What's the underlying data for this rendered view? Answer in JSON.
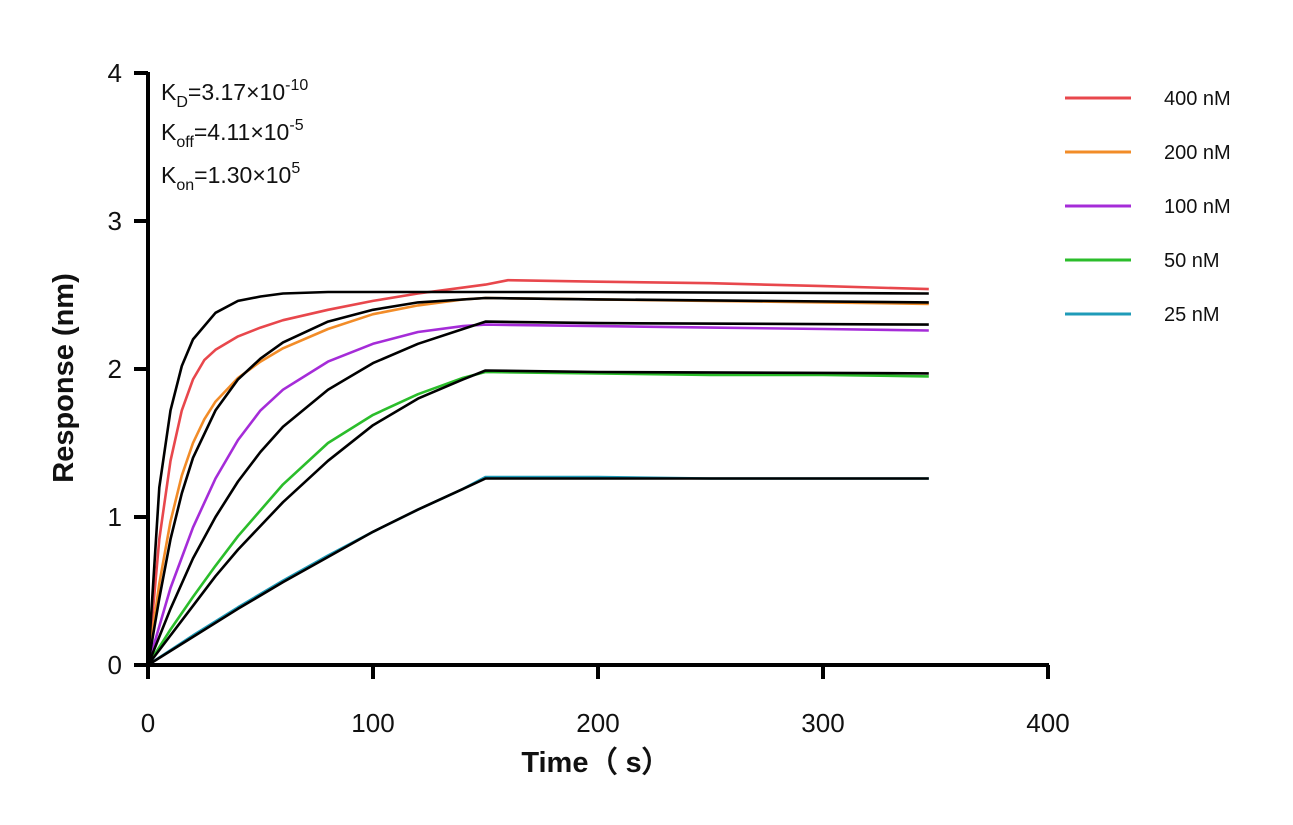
{
  "chart_data": {
    "type": "line",
    "xlabel": "Time（ s）",
    "ylabel": "Response (nm)",
    "xlim": [
      0,
      400
    ],
    "ylim": [
      0,
      4
    ],
    "x_ticks": [
      "0",
      "100",
      "200",
      "300",
      "400"
    ],
    "y_ticks": [
      "0",
      "1",
      "2",
      "3",
      "4"
    ],
    "grid": false,
    "legend_position": "top-right, outside plot",
    "annotations": {
      "kd": {
        "main": "K",
        "sub": "D",
        "eq": "=3.17×10",
        "exp": "-10"
      },
      "koff": {
        "main": "K",
        "sub": "off",
        "eq": "=4.11×10",
        "exp": "-5"
      },
      "kon": {
        "main": "K",
        "sub": "on",
        "eq": "=1.30×10",
        "exp": "5"
      }
    },
    "association_end_time": 150,
    "end_time": 347,
    "series": [
      {
        "name": "400 nM",
        "color": "#e8474c",
        "measured": [
          [
            0,
            0
          ],
          [
            5,
            0.85
          ],
          [
            10,
            1.38
          ],
          [
            15,
            1.72
          ],
          [
            20,
            1.93
          ],
          [
            25,
            2.06
          ],
          [
            30,
            2.13
          ],
          [
            40,
            2.22
          ],
          [
            50,
            2.28
          ],
          [
            60,
            2.33
          ],
          [
            80,
            2.4
          ],
          [
            100,
            2.46
          ],
          [
            120,
            2.51
          ],
          [
            140,
            2.55
          ],
          [
            150,
            2.57
          ],
          [
            160,
            2.6
          ],
          [
            200,
            2.59
          ],
          [
            250,
            2.58
          ],
          [
            300,
            2.56
          ],
          [
            347,
            2.54
          ]
        ],
        "fit": [
          [
            0,
            0
          ],
          [
            5,
            1.2
          ],
          [
            10,
            1.72
          ],
          [
            15,
            2.02
          ],
          [
            20,
            2.2
          ],
          [
            30,
            2.38
          ],
          [
            40,
            2.46
          ],
          [
            50,
            2.49
          ],
          [
            60,
            2.51
          ],
          [
            80,
            2.52
          ],
          [
            150,
            2.52
          ],
          [
            200,
            2.52
          ],
          [
            347,
            2.51
          ]
        ]
      },
      {
        "name": "200 nM",
        "color": "#f28c28",
        "measured": [
          [
            0,
            0
          ],
          [
            5,
            0.55
          ],
          [
            10,
            0.97
          ],
          [
            15,
            1.28
          ],
          [
            20,
            1.5
          ],
          [
            25,
            1.66
          ],
          [
            30,
            1.78
          ],
          [
            40,
            1.94
          ],
          [
            50,
            2.05
          ],
          [
            60,
            2.14
          ],
          [
            80,
            2.27
          ],
          [
            100,
            2.37
          ],
          [
            120,
            2.43
          ],
          [
            140,
            2.47
          ],
          [
            150,
            2.48
          ],
          [
            200,
            2.47
          ],
          [
            250,
            2.46
          ],
          [
            300,
            2.45
          ],
          [
            347,
            2.44
          ]
        ],
        "fit": [
          [
            0,
            0
          ],
          [
            5,
            0.45
          ],
          [
            10,
            0.85
          ],
          [
            15,
            1.16
          ],
          [
            20,
            1.4
          ],
          [
            30,
            1.72
          ],
          [
            40,
            1.93
          ],
          [
            50,
            2.07
          ],
          [
            60,
            2.18
          ],
          [
            80,
            2.32
          ],
          [
            100,
            2.4
          ],
          [
            120,
            2.45
          ],
          [
            150,
            2.48
          ],
          [
            200,
            2.47
          ],
          [
            347,
            2.45
          ]
        ]
      },
      {
        "name": "100 nM",
        "color": "#a52cd8",
        "measured": [
          [
            0,
            0
          ],
          [
            10,
            0.52
          ],
          [
            20,
            0.93
          ],
          [
            30,
            1.26
          ],
          [
            40,
            1.52
          ],
          [
            50,
            1.72
          ],
          [
            60,
            1.86
          ],
          [
            80,
            2.05
          ],
          [
            100,
            2.17
          ],
          [
            120,
            2.25
          ],
          [
            140,
            2.29
          ],
          [
            150,
            2.3
          ],
          [
            200,
            2.29
          ],
          [
            250,
            2.28
          ],
          [
            300,
            2.27
          ],
          [
            347,
            2.26
          ]
        ],
        "fit": [
          [
            0,
            0
          ],
          [
            10,
            0.38
          ],
          [
            20,
            0.72
          ],
          [
            30,
            1.0
          ],
          [
            40,
            1.24
          ],
          [
            50,
            1.44
          ],
          [
            60,
            1.61
          ],
          [
            80,
            1.86
          ],
          [
            100,
            2.04
          ],
          [
            120,
            2.17
          ],
          [
            140,
            2.27
          ],
          [
            150,
            2.32
          ],
          [
            200,
            2.31
          ],
          [
            347,
            2.3
          ]
        ]
      },
      {
        "name": "50 nM",
        "color": "#2bbd2b",
        "measured": [
          [
            0,
            0
          ],
          [
            10,
            0.24
          ],
          [
            20,
            0.46
          ],
          [
            30,
            0.67
          ],
          [
            40,
            0.87
          ],
          [
            60,
            1.22
          ],
          [
            80,
            1.5
          ],
          [
            100,
            1.69
          ],
          [
            120,
            1.83
          ],
          [
            140,
            1.94
          ],
          [
            150,
            1.98
          ],
          [
            200,
            1.97
          ],
          [
            250,
            1.96
          ],
          [
            300,
            1.96
          ],
          [
            347,
            1.95
          ]
        ],
        "fit": [
          [
            0,
            0
          ],
          [
            10,
            0.2
          ],
          [
            20,
            0.4
          ],
          [
            30,
            0.6
          ],
          [
            40,
            0.78
          ],
          [
            60,
            1.1
          ],
          [
            80,
            1.38
          ],
          [
            100,
            1.62
          ],
          [
            120,
            1.8
          ],
          [
            140,
            1.93
          ],
          [
            150,
            1.99
          ],
          [
            200,
            1.98
          ],
          [
            347,
            1.97
          ]
        ]
      },
      {
        "name": "25 nM",
        "color": "#1f9bb8",
        "measured": [
          [
            0,
            0
          ],
          [
            20,
            0.2
          ],
          [
            40,
            0.39
          ],
          [
            60,
            0.57
          ],
          [
            80,
            0.74
          ],
          [
            100,
            0.9
          ],
          [
            120,
            1.05
          ],
          [
            140,
            1.19
          ],
          [
            150,
            1.27
          ],
          [
            200,
            1.27
          ],
          [
            250,
            1.26
          ],
          [
            300,
            1.26
          ],
          [
            347,
            1.26
          ]
        ],
        "fit": [
          [
            0,
            0
          ],
          [
            20,
            0.19
          ],
          [
            40,
            0.38
          ],
          [
            60,
            0.56
          ],
          [
            80,
            0.73
          ],
          [
            100,
            0.9
          ],
          [
            120,
            1.05
          ],
          [
            140,
            1.19
          ],
          [
            150,
            1.26
          ],
          [
            200,
            1.26
          ],
          [
            347,
            1.26
          ]
        ]
      }
    ],
    "fit_color": "#000000"
  }
}
